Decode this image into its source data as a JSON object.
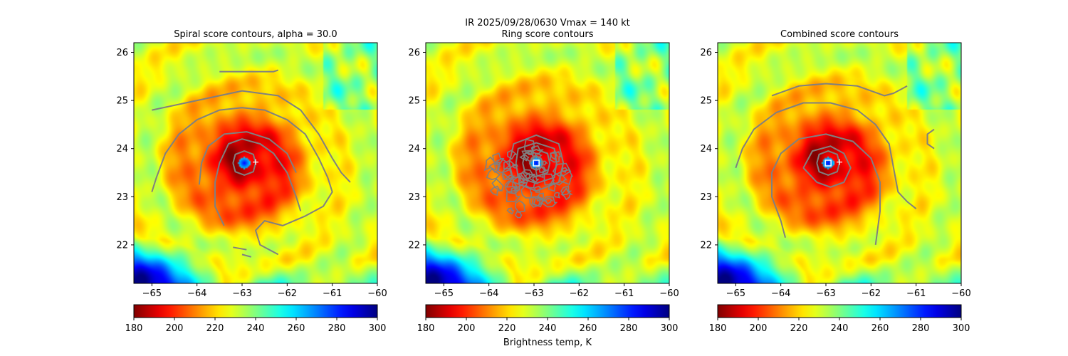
{
  "figure": {
    "suptitle": "IR  2025/09/28/0630    Vmax = 140 kt",
    "colorbar_label": "Brightness temp, K"
  },
  "chart_data": [
    {
      "type": "heatmap",
      "title": "Spiral score contours, alpha = 30.0",
      "xlim": [
        -65.4,
        -60.0
      ],
      "ylim": [
        21.2,
        26.2
      ],
      "xticks": [
        -65,
        -64,
        -63,
        -62,
        -61,
        -60
      ],
      "xtick_labels": [
        "−65",
        "−64",
        "−63",
        "−62",
        "−61",
        "−60"
      ],
      "yticks": [
        22,
        23,
        24,
        25,
        26
      ],
      "ytick_labels": [
        "22",
        "23",
        "24",
        "25",
        "26"
      ],
      "colorbar": {
        "min": 180,
        "max": 300,
        "ticks": [
          180,
          200,
          220,
          240,
          260,
          280,
          300
        ],
        "tick_labels": [
          "180",
          "200",
          "220",
          "240",
          "260",
          "280",
          "300"
        ],
        "colormap": "jet_r"
      },
      "field": {
        "center": [
          -62.95,
          23.7
        ],
        "eye_radius_deg": 0.12,
        "eye_temp": 285,
        "eyewall_temp": 188,
        "outer_temp": 228,
        "cold_air_corner": "bottom-left"
      },
      "contours": [
        [
          [
            -65.0,
            23.1
          ],
          [
            -64.9,
            23.4
          ],
          [
            -64.7,
            23.9
          ],
          [
            -64.4,
            24.3
          ],
          [
            -64.0,
            24.6
          ],
          [
            -63.5,
            24.8
          ],
          [
            -63.0,
            24.85
          ],
          [
            -62.5,
            24.8
          ],
          [
            -62.0,
            24.6
          ],
          [
            -61.6,
            24.3
          ],
          [
            -61.3,
            23.8
          ],
          [
            -61.1,
            23.4
          ],
          [
            -61.0,
            23.1
          ],
          [
            -61.2,
            22.8
          ],
          [
            -61.6,
            22.6
          ],
          [
            -62.1,
            22.4
          ],
          [
            -62.5,
            22.5
          ],
          [
            -62.7,
            22.3
          ],
          [
            -62.6,
            22.0
          ],
          [
            -62.2,
            21.8
          ]
        ],
        [
          [
            -63.2,
            21.95
          ],
          [
            -62.9,
            21.9
          ]
        ],
        [
          [
            -63.0,
            21.8
          ],
          [
            -62.8,
            21.75
          ]
        ],
        [
          [
            -65.0,
            24.8
          ],
          [
            -64.0,
            25.0
          ],
          [
            -63.0,
            25.2
          ],
          [
            -62.2,
            25.1
          ],
          [
            -61.7,
            24.8
          ],
          [
            -61.3,
            24.3
          ],
          [
            -61.0,
            23.8
          ],
          [
            -60.8,
            23.5
          ],
          [
            -60.6,
            23.3
          ]
        ],
        [
          [
            -63.5,
            25.6
          ],
          [
            -62.3,
            25.6
          ],
          [
            -62.2,
            25.63
          ]
        ],
        [
          [
            -63.4,
            22.4
          ],
          [
            -63.6,
            22.8
          ],
          [
            -63.6,
            23.3
          ],
          [
            -63.5,
            23.7
          ],
          [
            -63.3,
            24.1
          ],
          [
            -63.0,
            24.2
          ],
          [
            -62.6,
            24.1
          ],
          [
            -62.3,
            23.9
          ],
          [
            -62.0,
            23.5
          ],
          [
            -61.8,
            23.0
          ],
          [
            -61.7,
            22.7
          ]
        ],
        [
          [
            -63.95,
            23.25
          ],
          [
            -63.9,
            23.7
          ],
          [
            -63.75,
            24.05
          ],
          [
            -63.4,
            24.3
          ],
          [
            -62.9,
            24.35
          ],
          [
            -62.4,
            24.2
          ],
          [
            -62.0,
            23.9
          ],
          [
            -61.8,
            23.5
          ]
        ],
        [
          [
            -63.2,
            23.7
          ],
          [
            -63.15,
            23.88
          ],
          [
            -62.95,
            23.95
          ],
          [
            -62.75,
            23.88
          ],
          [
            -62.7,
            23.7
          ],
          [
            -62.75,
            23.52
          ],
          [
            -62.95,
            23.45
          ],
          [
            -63.15,
            23.52
          ],
          [
            -63.2,
            23.7
          ]
        ]
      ],
      "markers": [
        {
          "kind": "plus",
          "lon": -62.7,
          "lat": 23.72,
          "color": "#ffffff"
        }
      ]
    },
    {
      "type": "heatmap",
      "title": "Ring score contours",
      "xlim": [
        -65.4,
        -60.0
      ],
      "ylim": [
        21.2,
        26.2
      ],
      "xticks": [
        -65,
        -64,
        -63,
        -62,
        -61,
        -60
      ],
      "xtick_labels": [
        "−65",
        "−64",
        "−63",
        "−62",
        "−61",
        "−60"
      ],
      "yticks": [
        22,
        23,
        24,
        25,
        26
      ],
      "ytick_labels": [
        "22",
        "23",
        "24",
        "25",
        "26"
      ],
      "colorbar": {
        "min": 180,
        "max": 300,
        "ticks": [
          180,
          200,
          220,
          240,
          260,
          280,
          300
        ],
        "tick_labels": [
          "180",
          "200",
          "220",
          "240",
          "260",
          "280",
          "300"
        ],
        "colormap": "jet_r"
      },
      "field": {
        "center": [
          -62.95,
          23.7
        ],
        "eye_radius_deg": 0.12,
        "eye_temp": 285,
        "eyewall_temp": 188,
        "outer_temp": 228,
        "cold_air_corner": "bottom-left"
      },
      "contours": [
        [
          [
            -63.1,
            23.7
          ],
          [
            -63.05,
            23.8
          ],
          [
            -62.95,
            23.85
          ],
          [
            -62.85,
            23.8
          ],
          [
            -62.8,
            23.7
          ],
          [
            -62.85,
            23.6
          ],
          [
            -62.95,
            23.55
          ],
          [
            -63.05,
            23.6
          ],
          [
            -63.1,
            23.7
          ]
        ],
        [
          [
            -63.25,
            23.7
          ],
          [
            -63.2,
            23.9
          ],
          [
            -62.95,
            23.98
          ],
          [
            -62.7,
            23.9
          ],
          [
            -62.65,
            23.7
          ],
          [
            -62.7,
            23.5
          ],
          [
            -62.95,
            23.42
          ],
          [
            -63.2,
            23.5
          ],
          [
            -63.25,
            23.7
          ]
        ],
        [
          [
            -63.4,
            23.7
          ],
          [
            -63.35,
            24.0
          ],
          [
            -62.95,
            24.12
          ],
          [
            -62.55,
            24.0
          ],
          [
            -62.5,
            23.7
          ],
          [
            -62.55,
            23.4
          ],
          [
            -62.95,
            23.28
          ],
          [
            -63.35,
            23.4
          ],
          [
            -63.4,
            23.7
          ]
        ],
        [
          [
            -63.55,
            23.7
          ],
          [
            -63.45,
            24.1
          ],
          [
            -62.95,
            24.28
          ],
          [
            -62.45,
            24.1
          ],
          [
            -62.35,
            23.7
          ],
          [
            -62.45,
            23.3
          ],
          [
            -62.95,
            23.12
          ],
          [
            -63.45,
            23.3
          ],
          [
            -63.55,
            23.7
          ]
        ]
      ],
      "noise_region": {
        "center": [
          -63.2,
          23.3
        ],
        "radius_lon": 1.0,
        "radius_lat": 0.75,
        "seed": 7,
        "count": 55
      },
      "markers": [
        {
          "kind": "square",
          "lon": -62.95,
          "lat": 23.7,
          "color": "#ffffff"
        }
      ]
    },
    {
      "type": "heatmap",
      "title": "Combined score contours",
      "xlim": [
        -65.4,
        -60.0
      ],
      "ylim": [
        21.2,
        26.2
      ],
      "xticks": [
        -65,
        -64,
        -63,
        -62,
        -61,
        -60
      ],
      "xtick_labels": [
        "−65",
        "−64",
        "−63",
        "−62",
        "−61",
        "−60"
      ],
      "yticks": [
        22,
        23,
        24,
        25,
        26
      ],
      "ytick_labels": [
        "22",
        "23",
        "24",
        "25",
        "26"
      ],
      "colorbar": {
        "min": 180,
        "max": 300,
        "ticks": [
          180,
          200,
          220,
          240,
          260,
          280,
          300
        ],
        "tick_labels": [
          "180",
          "200",
          "220",
          "240",
          "260",
          "280",
          "300"
        ],
        "colormap": "jet_r"
      },
      "field": {
        "center": [
          -62.95,
          23.7
        ],
        "eye_radius_deg": 0.12,
        "eye_temp": 285,
        "eyewall_temp": 188,
        "outer_temp": 228,
        "cold_air_corner": "bottom-left"
      },
      "contours": [
        [
          [
            -64.2,
            25.1
          ],
          [
            -63.6,
            25.3
          ],
          [
            -63.0,
            25.35
          ],
          [
            -62.3,
            25.3
          ],
          [
            -61.7,
            25.1
          ],
          [
            -61.5,
            25.15
          ],
          [
            -61.3,
            25.25
          ],
          [
            -61.2,
            25.3
          ]
        ],
        [
          [
            -65.0,
            23.6
          ],
          [
            -64.85,
            24.0
          ],
          [
            -64.6,
            24.4
          ],
          [
            -64.1,
            24.75
          ],
          [
            -63.5,
            24.95
          ],
          [
            -62.9,
            24.95
          ],
          [
            -62.3,
            24.8
          ],
          [
            -61.9,
            24.5
          ],
          [
            -61.6,
            24.1
          ],
          [
            -61.5,
            23.6
          ],
          [
            -61.4,
            23.1
          ],
          [
            -61.2,
            22.9
          ],
          [
            -61.0,
            22.75
          ]
        ],
        [
          [
            -63.9,
            22.15
          ],
          [
            -64.0,
            22.5
          ],
          [
            -64.2,
            23.0
          ],
          [
            -64.2,
            23.5
          ],
          [
            -64.0,
            23.9
          ],
          [
            -63.6,
            24.2
          ],
          [
            -63.0,
            24.3
          ],
          [
            -62.4,
            24.15
          ],
          [
            -62.0,
            23.8
          ],
          [
            -61.8,
            23.3
          ],
          [
            -61.8,
            22.7
          ],
          [
            -61.9,
            22.0
          ]
        ],
        [
          [
            -63.5,
            23.6
          ],
          [
            -63.3,
            23.95
          ],
          [
            -62.9,
            24.05
          ],
          [
            -62.6,
            23.9
          ],
          [
            -62.45,
            23.6
          ],
          [
            -62.6,
            23.3
          ],
          [
            -62.9,
            23.2
          ],
          [
            -63.2,
            23.3
          ],
          [
            -63.5,
            23.6
          ]
        ],
        [
          [
            -63.2,
            23.7
          ],
          [
            -63.15,
            23.88
          ],
          [
            -62.95,
            23.95
          ],
          [
            -62.75,
            23.88
          ],
          [
            -62.7,
            23.7
          ],
          [
            -62.75,
            23.52
          ],
          [
            -62.95,
            23.45
          ],
          [
            -63.15,
            23.52
          ],
          [
            -63.2,
            23.7
          ]
        ],
        [
          [
            -60.6,
            24.4
          ],
          [
            -60.75,
            24.3
          ],
          [
            -60.75,
            24.1
          ],
          [
            -60.6,
            24.0
          ]
        ]
      ],
      "markers": [
        {
          "kind": "square",
          "lon": -62.95,
          "lat": 23.7,
          "color": "#ffffff"
        },
        {
          "kind": "plus",
          "lon": -62.7,
          "lat": 23.72,
          "color": "#ffffff"
        }
      ]
    }
  ]
}
